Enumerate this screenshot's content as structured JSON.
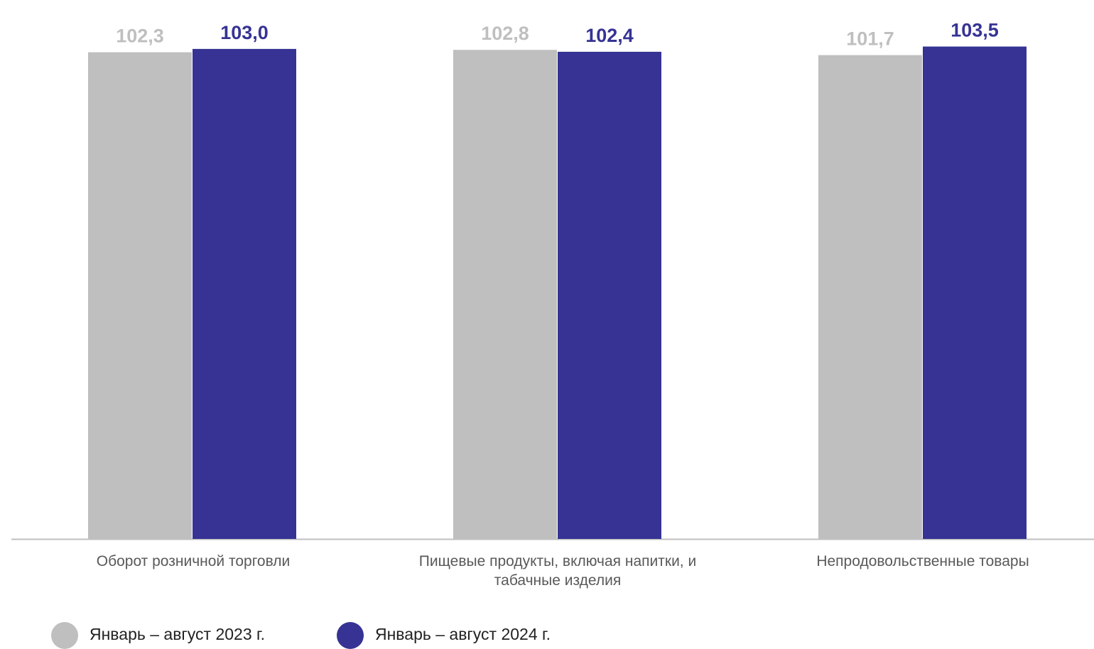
{
  "chart_data": {
    "type": "bar",
    "categories": [
      "Оборот розничной торговли",
      "Пищевые продукты, включая напитки, и табачные изделия",
      "Непродовольственные товары"
    ],
    "series": [
      {
        "name": "Январь – август 2023 г.",
        "values": [
          102.3,
          102.8,
          101.7
        ],
        "labels": [
          "102,3",
          "102,8",
          "101,7"
        ],
        "color": "#bfbfbf"
      },
      {
        "name": "Январь – август 2024 г.",
        "values": [
          103.0,
          102.4,
          103.5
        ],
        "labels": [
          "103,0",
          "102,4",
          "103,5"
        ],
        "color": "#363394"
      }
    ],
    "legend_position": "bottom-left",
    "grid": false
  }
}
